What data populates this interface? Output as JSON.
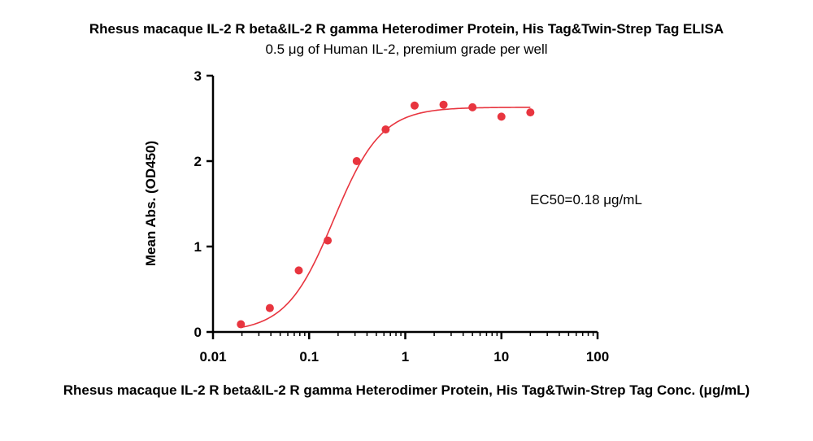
{
  "chart_data": {
    "type": "scatter",
    "title": "Rhesus macaque IL-2 R beta&IL-2 R gamma Heterodimer Protein, His Tag&Twin-Strep Tag ELISA",
    "subtitle": "0.5 μg of Human IL-2, premium grade per well",
    "xlabel": "Rhesus macaque IL-2 R beta&IL-2 R gamma Heterodimer Protein, His Tag&Twin-Strep Tag Conc. (μg/mL)",
    "ylabel": "Mean Abs. (OD450)",
    "x_scale": "log",
    "xlim": [
      0.01,
      100
    ],
    "ylim": [
      0,
      3
    ],
    "x_ticks": [
      "0.01",
      "0.1",
      "1",
      "10",
      "100"
    ],
    "y_ticks": [
      "0",
      "1",
      "2",
      "3"
    ],
    "grid": false,
    "legend": "none",
    "annotation": "EC50=0.18 μg/mL",
    "series": [
      {
        "color": "#e8353f",
        "x": [
          0.0195,
          0.039,
          0.078,
          0.156,
          0.3125,
          0.625,
          1.25,
          2.5,
          5,
          10,
          20
        ],
        "y": [
          0.09,
          0.28,
          0.72,
          1.07,
          2.0,
          2.37,
          2.65,
          2.66,
          2.63,
          2.52,
          2.57
        ]
      }
    ],
    "fit_curve": {
      "model": "4PL",
      "bottom": 0.0,
      "top": 2.63,
      "ec50": 0.18,
      "hill": 1.75,
      "x_range": [
        0.0195,
        20
      ],
      "color": "#e8353f"
    }
  }
}
